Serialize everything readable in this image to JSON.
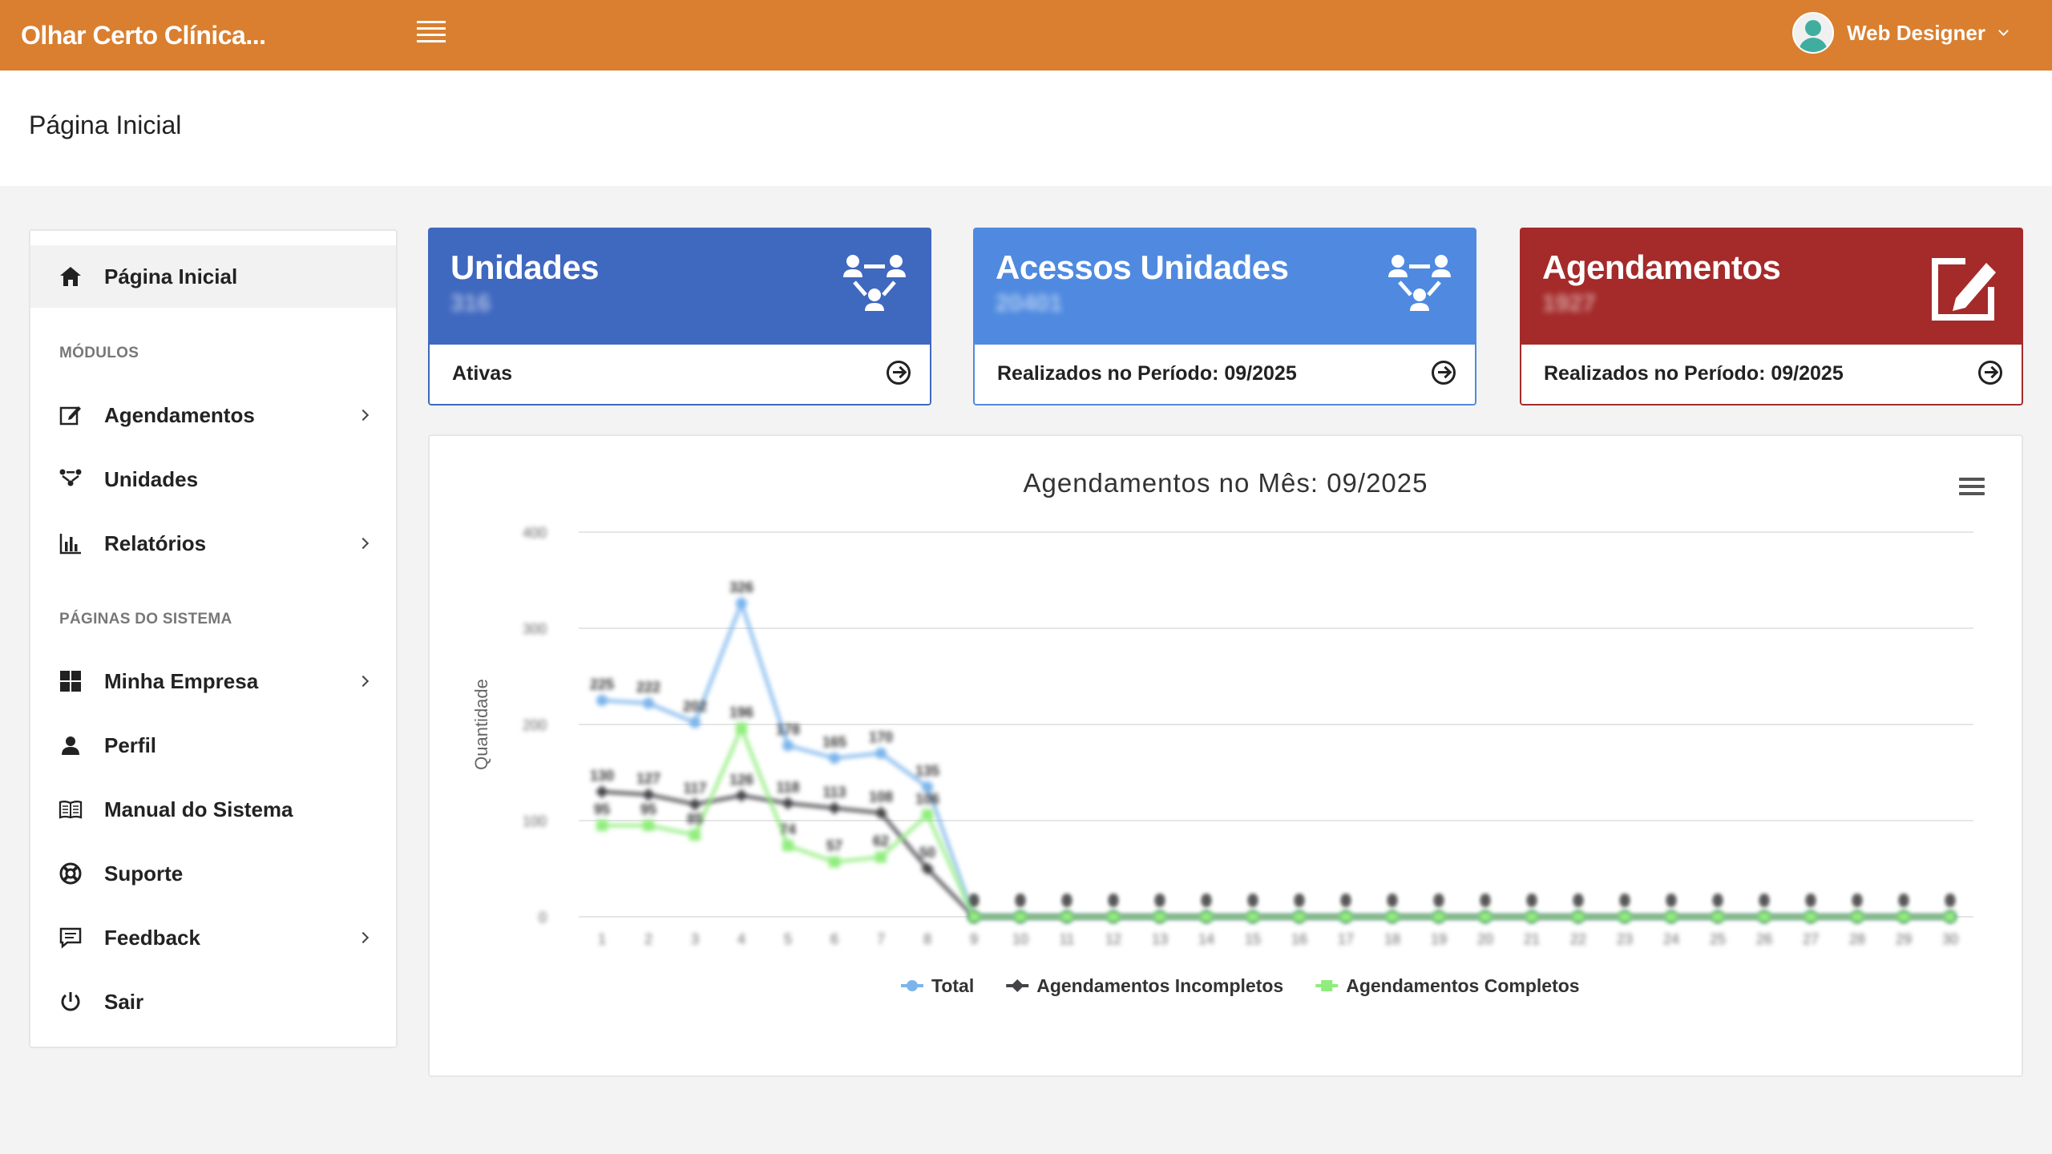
{
  "app": {
    "title": "Olhar Certo Clínica..."
  },
  "user": {
    "name": "Web Designer"
  },
  "page": {
    "title": "Página Inicial"
  },
  "sidebar": {
    "home": {
      "label": "Página Inicial",
      "icon": "home-icon"
    },
    "sections": [
      {
        "label": "MÓDULOS"
      },
      {
        "label": "PÁGINAS DO SISTEMA"
      }
    ],
    "items": [
      {
        "label": "Agendamentos",
        "icon": "edit-icon",
        "has_submenu": true
      },
      {
        "label": "Unidades",
        "icon": "network-icon",
        "has_submenu": false
      },
      {
        "label": "Relatórios",
        "icon": "bar-chart-icon",
        "has_submenu": true
      },
      {
        "label": "Minha Empresa",
        "icon": "grid-icon",
        "has_submenu": true
      },
      {
        "label": "Perfil",
        "icon": "user-icon",
        "has_submenu": false
      },
      {
        "label": "Manual do Sistema",
        "icon": "book-icon",
        "has_submenu": false
      },
      {
        "label": "Suporte",
        "icon": "lifebuoy-icon",
        "has_submenu": false
      },
      {
        "label": "Feedback",
        "icon": "comment-icon",
        "has_submenu": true
      },
      {
        "label": "Sair",
        "icon": "power-icon",
        "has_submenu": false
      }
    ]
  },
  "cards": [
    {
      "title": "Unidades",
      "value": "316",
      "footer": "Ativas",
      "color": "#3f68bf",
      "icon": "network-icon"
    },
    {
      "title": "Acessos Unidades",
      "value": "20401",
      "footer": "Realizados no Período: 09/2025",
      "color": "#4f8ae0",
      "icon": "network-icon"
    },
    {
      "title": "Agendamentos",
      "value": "1927",
      "footer": "Realizados no Período: 09/2025",
      "color": "#a52a2a",
      "icon": "edit-icon"
    }
  ],
  "chart_data": {
    "type": "line",
    "title": "Agendamentos no Mês: 09/2025",
    "ylabel": "Quantidade",
    "xlabel": "",
    "ylim": [
      0,
      400
    ],
    "yticks": [
      "0",
      "100",
      "200",
      "300",
      "400"
    ],
    "categories": [
      "1",
      "2",
      "3",
      "4",
      "5",
      "6",
      "7",
      "8",
      "9",
      "10",
      "11",
      "12",
      "13",
      "14",
      "15",
      "16",
      "17",
      "18",
      "19",
      "20",
      "21",
      "22",
      "23",
      "24",
      "25",
      "26",
      "27",
      "28",
      "29",
      "30"
    ],
    "series": [
      {
        "name": "Total",
        "color": "#7cb5ec",
        "values": [
          225,
          222,
          202,
          326,
          178,
          165,
          170,
          135,
          0,
          0,
          0,
          0,
          0,
          0,
          0,
          0,
          0,
          0,
          0,
          0,
          0,
          0,
          0,
          0,
          0,
          0,
          0,
          0,
          0,
          0
        ]
      },
      {
        "name": "Agendamentos Incompletos",
        "color": "#434348",
        "values": [
          130,
          127,
          117,
          126,
          118,
          113,
          108,
          50,
          0,
          0,
          0,
          0,
          0,
          0,
          0,
          0,
          0,
          0,
          0,
          0,
          0,
          0,
          0,
          0,
          0,
          0,
          0,
          0,
          0,
          0
        ]
      },
      {
        "name": "Agendamentos Completos",
        "color": "#90ed7d",
        "values": [
          95,
          95,
          85,
          196,
          74,
          57,
          62,
          106,
          0,
          0,
          0,
          0,
          0,
          0,
          0,
          0,
          0,
          0,
          0,
          0,
          0,
          0,
          0,
          0,
          0,
          0,
          0,
          0,
          0,
          0
        ]
      }
    ],
    "legend_position": "bottom-center",
    "grid": true
  }
}
